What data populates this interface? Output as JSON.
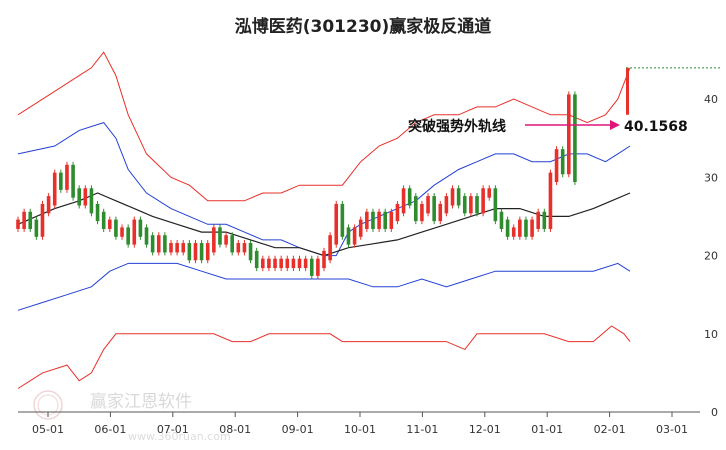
{
  "chart_data": {
    "type": "line",
    "title": "泓博医药(301230)赢家极反通道",
    "x_ticks": [
      "05-01",
      "06-01",
      "07-01",
      "08-01",
      "09-01",
      "10-01",
      "11-01",
      "12-01",
      "01-01",
      "02-01",
      "03-01"
    ],
    "y_ticks": [
      0,
      10,
      20,
      30,
      40
    ],
    "ylim": [
      0,
      45
    ],
    "annotation": {
      "text": "突破强势外轨线",
      "value": "40.1568",
      "target_y": 40.1568
    },
    "series": [
      {
        "key": "outer_upper",
        "color": "#e8302a",
        "points": [
          [
            0,
            38
          ],
          [
            6,
            41
          ],
          [
            10,
            43
          ],
          [
            12,
            44
          ],
          [
            14,
            46
          ],
          [
            16,
            43
          ],
          [
            18,
            38
          ],
          [
            21,
            33
          ],
          [
            25,
            30
          ],
          [
            28,
            29
          ],
          [
            31,
            27
          ],
          [
            34,
            27
          ],
          [
            37,
            27
          ],
          [
            40,
            28
          ],
          [
            43,
            28
          ],
          [
            46,
            29
          ],
          [
            50,
            29
          ],
          [
            53,
            29
          ],
          [
            56,
            32
          ],
          [
            59,
            34
          ],
          [
            62,
            35
          ],
          [
            65,
            37
          ],
          [
            68,
            38
          ],
          [
            72,
            38
          ],
          [
            75,
            39
          ],
          [
            78,
            39
          ],
          [
            81,
            40
          ],
          [
            84,
            39
          ],
          [
            87,
            38
          ],
          [
            90,
            38
          ],
          [
            93,
            37
          ],
          [
            96,
            38
          ],
          [
            98,
            40
          ],
          [
            100,
            44
          ]
        ]
      },
      {
        "key": "inner_upper",
        "color": "#2340d6",
        "points": [
          [
            0,
            33
          ],
          [
            6,
            34
          ],
          [
            10,
            36
          ],
          [
            14,
            37
          ],
          [
            16,
            35
          ],
          [
            18,
            31
          ],
          [
            21,
            28
          ],
          [
            25,
            26
          ],
          [
            28,
            25
          ],
          [
            31,
            24
          ],
          [
            34,
            24
          ],
          [
            37,
            23
          ],
          [
            40,
            22
          ],
          [
            43,
            22
          ],
          [
            46,
            21
          ],
          [
            50,
            20
          ],
          [
            52,
            20
          ],
          [
            54,
            23
          ],
          [
            56,
            24
          ],
          [
            59,
            25
          ],
          [
            62,
            26
          ],
          [
            65,
            27
          ],
          [
            68,
            29
          ],
          [
            72,
            31
          ],
          [
            75,
            32
          ],
          [
            78,
            33
          ],
          [
            81,
            33
          ],
          [
            84,
            32
          ],
          [
            87,
            32
          ],
          [
            90,
            33
          ],
          [
            93,
            33
          ],
          [
            96,
            32
          ],
          [
            98,
            33
          ],
          [
            100,
            34
          ]
        ]
      },
      {
        "key": "middle",
        "color": "#222222",
        "points": [
          [
            0,
            24
          ],
          [
            6,
            26
          ],
          [
            10,
            27
          ],
          [
            13,
            28
          ],
          [
            16,
            27
          ],
          [
            19,
            26
          ],
          [
            22,
            25
          ],
          [
            26,
            24
          ],
          [
            30,
            23
          ],
          [
            34,
            23
          ],
          [
            38,
            22
          ],
          [
            42,
            21
          ],
          [
            46,
            21
          ],
          [
            50,
            20
          ],
          [
            54,
            21
          ],
          [
            58,
            21.5
          ],
          [
            62,
            22
          ],
          [
            66,
            23
          ],
          [
            70,
            24
          ],
          [
            74,
            25
          ],
          [
            78,
            26
          ],
          [
            82,
            26
          ],
          [
            86,
            25
          ],
          [
            90,
            25
          ],
          [
            94,
            26
          ],
          [
            97,
            27
          ],
          [
            100,
            28
          ]
        ]
      },
      {
        "key": "inner_lower",
        "color": "#2340d6",
        "points": [
          [
            0,
            13
          ],
          [
            4,
            14
          ],
          [
            8,
            15
          ],
          [
            12,
            16
          ],
          [
            15,
            18
          ],
          [
            18,
            19
          ],
          [
            22,
            19
          ],
          [
            26,
            19
          ],
          [
            30,
            18
          ],
          [
            34,
            17
          ],
          [
            38,
            17
          ],
          [
            42,
            17
          ],
          [
            46,
            17
          ],
          [
            50,
            17
          ],
          [
            54,
            17
          ],
          [
            58,
            16
          ],
          [
            62,
            16
          ],
          [
            66,
            17
          ],
          [
            70,
            16
          ],
          [
            74,
            17
          ],
          [
            78,
            18
          ],
          [
            82,
            18
          ],
          [
            86,
            18
          ],
          [
            90,
            18
          ],
          [
            94,
            18
          ],
          [
            98,
            19
          ],
          [
            100,
            18
          ]
        ]
      },
      {
        "key": "outer_lower",
        "color": "#e8302a",
        "points": [
          [
            0,
            3
          ],
          [
            4,
            5
          ],
          [
            8,
            6
          ],
          [
            10,
            4
          ],
          [
            12,
            5
          ],
          [
            14,
            8
          ],
          [
            16,
            10
          ],
          [
            18,
            10
          ],
          [
            20,
            10
          ],
          [
            23,
            10
          ],
          [
            26,
            10
          ],
          [
            29,
            10
          ],
          [
            32,
            10
          ],
          [
            35,
            9
          ],
          [
            38,
            9
          ],
          [
            41,
            10
          ],
          [
            44,
            10
          ],
          [
            48,
            10
          ],
          [
            51,
            10
          ],
          [
            53,
            9
          ],
          [
            56,
            9
          ],
          [
            59,
            9
          ],
          [
            62,
            9
          ],
          [
            66,
            9
          ],
          [
            70,
            9
          ],
          [
            73,
            8
          ],
          [
            75,
            10
          ],
          [
            78,
            10
          ],
          [
            82,
            10
          ],
          [
            86,
            10
          ],
          [
            90,
            9
          ],
          [
            94,
            9
          ],
          [
            97,
            11
          ],
          [
            99,
            10
          ],
          [
            100,
            9
          ]
        ]
      }
    ],
    "candles": {
      "up_color": "#e8302a",
      "down_color": "#2e8b2e",
      "spike_up_color": "#e8302a",
      "points": [
        [
          0,
          24
        ],
        [
          1,
          25
        ],
        [
          2,
          24
        ],
        [
          3,
          23
        ],
        [
          4,
          26
        ],
        [
          5,
          27
        ],
        [
          6,
          30
        ],
        [
          7,
          29
        ],
        [
          8,
          31
        ],
        [
          9,
          28
        ],
        [
          10,
          27
        ],
        [
          11,
          28
        ],
        [
          12,
          26
        ],
        [
          13,
          25
        ],
        [
          14,
          24
        ],
        [
          15,
          24
        ],
        [
          16,
          23
        ],
        [
          17,
          23
        ],
        [
          18,
          22
        ],
        [
          19,
          24
        ],
        [
          20,
          23
        ],
        [
          21,
          22
        ],
        [
          22,
          21
        ],
        [
          23,
          22
        ],
        [
          24,
          21
        ],
        [
          25,
          21
        ],
        [
          26,
          21
        ],
        [
          27,
          21
        ],
        [
          28,
          20
        ],
        [
          29,
          21
        ],
        [
          30,
          20
        ],
        [
          31,
          21
        ],
        [
          32,
          23
        ],
        [
          33,
          22
        ],
        [
          34,
          22
        ],
        [
          35,
          21
        ],
        [
          36,
          21
        ],
        [
          37,
          21
        ],
        [
          38,
          20
        ],
        [
          39,
          19
        ],
        [
          40,
          19
        ],
        [
          41,
          19
        ],
        [
          42,
          19
        ],
        [
          43,
          19
        ],
        [
          44,
          19
        ],
        [
          45,
          19
        ],
        [
          46,
          19
        ],
        [
          47,
          19
        ],
        [
          48,
          18
        ],
        [
          49,
          19
        ],
        [
          50,
          20
        ],
        [
          51,
          22
        ],
        [
          52,
          26
        ],
        [
          53,
          23
        ],
        [
          54,
          22
        ],
        [
          55,
          23
        ],
        [
          56,
          24
        ],
        [
          57,
          25
        ],
        [
          58,
          24
        ],
        [
          59,
          25
        ],
        [
          60,
          24
        ],
        [
          61,
          25
        ],
        [
          62,
          26
        ],
        [
          63,
          28
        ],
        [
          64,
          27
        ],
        [
          65,
          25
        ],
        [
          66,
          26
        ],
        [
          67,
          27
        ],
        [
          68,
          25
        ],
        [
          69,
          26
        ],
        [
          70,
          27
        ],
        [
          71,
          28
        ],
        [
          72,
          27
        ],
        [
          73,
          26
        ],
        [
          74,
          27
        ],
        [
          75,
          26
        ],
        [
          76,
          28
        ],
        [
          77,
          28
        ],
        [
          78,
          25
        ],
        [
          79,
          24
        ],
        [
          80,
          23
        ],
        [
          81,
          23
        ],
        [
          82,
          24
        ],
        [
          83,
          23
        ],
        [
          84,
          24
        ],
        [
          85,
          25
        ],
        [
          86,
          24
        ],
        [
          87,
          30
        ],
        [
          88,
          33
        ],
        [
          89,
          31
        ],
        [
          90,
          40
        ],
        [
          91,
          30
        ]
      ]
    }
  },
  "watermark": {
    "brand": "赢家江恩软件",
    "url": "www.360ruan.com"
  }
}
